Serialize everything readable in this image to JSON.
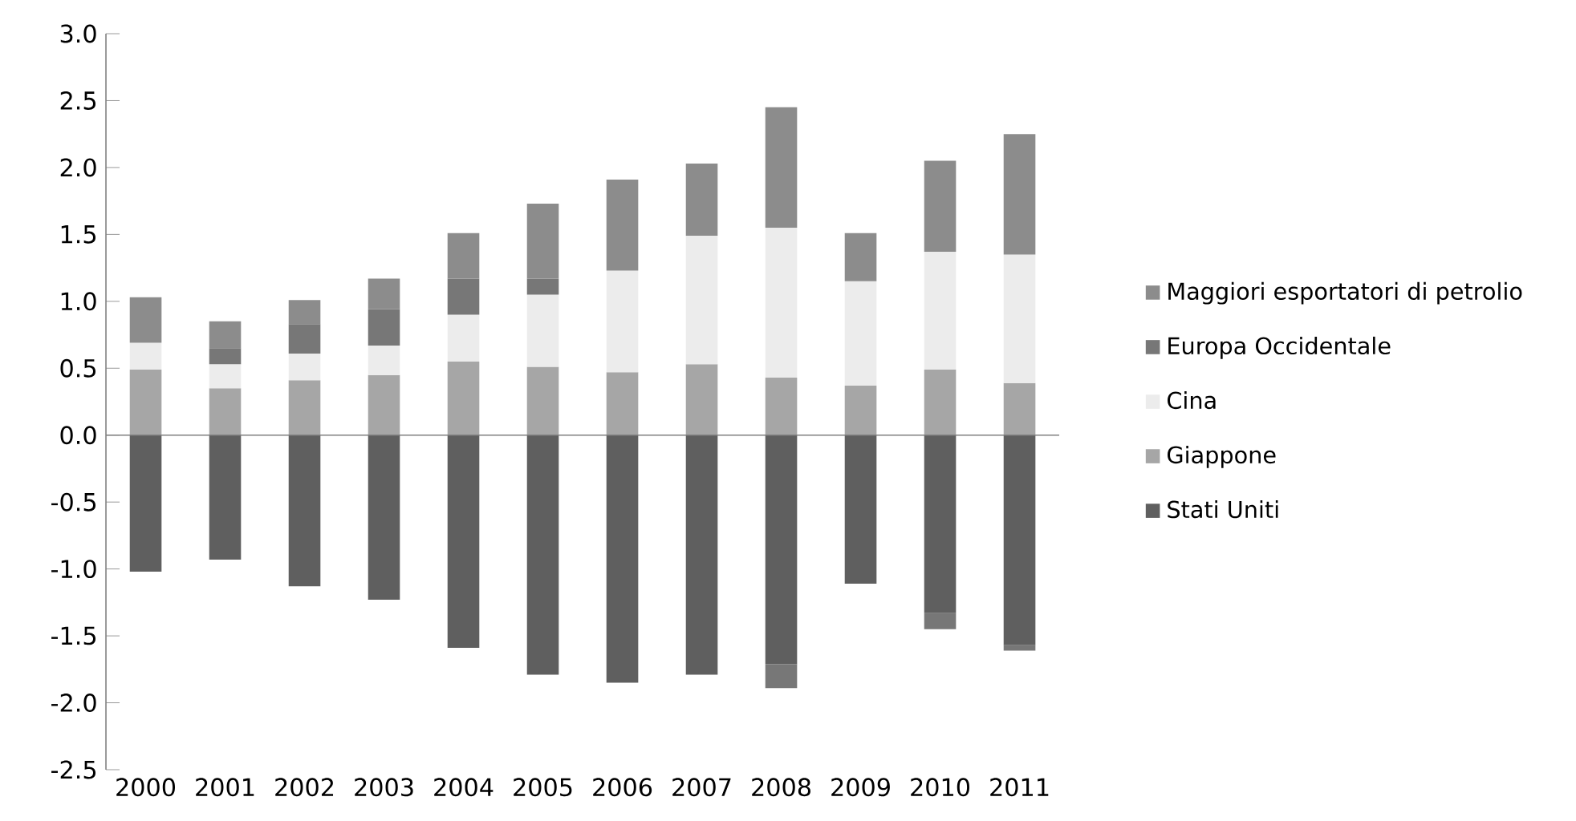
{
  "chart_data": {
    "type": "bar",
    "stacked": true,
    "categories": [
      "2000",
      "2001",
      "2002",
      "2003",
      "2004",
      "2005",
      "2006",
      "2007",
      "2008",
      "2009",
      "2010",
      "2011"
    ],
    "series": [
      {
        "name": "Stati Uniti",
        "color": "#5f5f5f",
        "values": [
          -1.02,
          -0.93,
          -1.13,
          -1.23,
          -1.59,
          -1.79,
          -1.85,
          -1.79,
          -1.71,
          -1.11,
          -1.33,
          -1.57
        ]
      },
      {
        "name": "Giappone",
        "color": "#a6a6a6",
        "values": [
          0.49,
          0.35,
          0.41,
          0.45,
          0.55,
          0.51,
          0.47,
          0.53,
          0.43,
          0.37,
          0.49,
          0.39
        ]
      },
      {
        "name": "Cina",
        "color": "#ececec",
        "values": [
          0.2,
          0.18,
          0.2,
          0.22,
          0.35,
          0.54,
          0.76,
          0.96,
          1.12,
          0.78,
          0.88,
          0.96
        ]
      },
      {
        "name": "Europa Occidentale",
        "color": "#777777",
        "values": [
          0,
          0.12,
          0.22,
          0.27,
          0.27,
          0.12,
          0,
          0,
          -0.18,
          0,
          -0.12,
          -0.04
        ]
      },
      {
        "name": "Maggiori esportatori di petrolio",
        "color": "#8c8c8c",
        "values": [
          0.34,
          0.2,
          0.18,
          0.23,
          0.34,
          0.56,
          0.68,
          0.54,
          0.9,
          0.36,
          0.68,
          0.9
        ]
      }
    ],
    "ylim": [
      -2.5,
      3.0
    ],
    "yticks": [
      {
        "value": -2.5,
        "label": "-2.5"
      },
      {
        "value": -2.0,
        "label": "-2.0"
      },
      {
        "value": -1.5,
        "label": "-1.5"
      },
      {
        "value": -1.0,
        "label": "-1.0"
      },
      {
        "value": -0.5,
        "label": "-0.5"
      },
      {
        "value": 0.0,
        "label": "0.0"
      },
      {
        "value": 0.5,
        "label": "0.5"
      },
      {
        "value": 1.0,
        "label": "1.0"
      },
      {
        "value": 1.5,
        "label": "1.5"
      },
      {
        "value": 2.0,
        "label": "2.0"
      },
      {
        "value": 2.5,
        "label": "2.5"
      },
      {
        "value": 3.0,
        "label": "3.0"
      }
    ],
    "legend": "right"
  }
}
